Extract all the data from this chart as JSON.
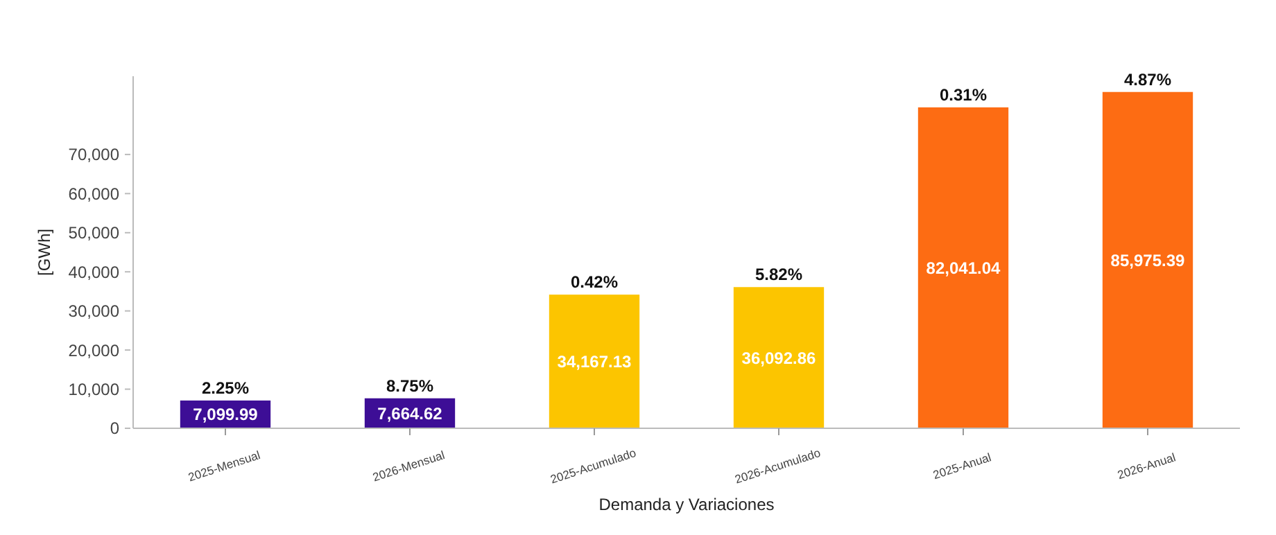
{
  "chart_data": {
    "type": "bar",
    "xlabel": "Demanda y Variaciones",
    "ylabel": "[GWh]",
    "categories": [
      "2025-Mensual",
      "2026-Mensual",
      "2025-Acumulado",
      "2026-Acumulado",
      "2025-Anual",
      "2026-Anual"
    ],
    "values": [
      7099.99,
      7664.62,
      34167.13,
      36092.86,
      82041.04,
      85975.39
    ],
    "colors": [
      "#3d0e96",
      "#3d0e96",
      "#fcc500",
      "#fcc500",
      "#fd6c13",
      "#fd6c13"
    ],
    "ylim": [
      0,
      90000
    ],
    "yticks": [
      {
        "value": 0,
        "label": "0"
      },
      {
        "value": 10000,
        "label": "10,000"
      },
      {
        "value": 20000,
        "label": "20,000"
      },
      {
        "value": 30000,
        "label": "30,000"
      },
      {
        "value": 40000,
        "label": "40,000"
      },
      {
        "value": 50000,
        "label": "50,000"
      },
      {
        "value": 60000,
        "label": "60,000"
      },
      {
        "value": 70000,
        "label": "70,000"
      }
    ],
    "value_labels": [
      "7,099.99",
      "7,664.62",
      "34,167.13",
      "36,092.86",
      "82,041.04",
      "85,975.39"
    ],
    "grid": false,
    "annotations": [
      {
        "text": "2.25%",
        "x": "2025-Mensual",
        "y": 7099.99
      },
      {
        "text": "8.75%",
        "x": "2026-Mensual",
        "y": 7664.62
      },
      {
        "text": "0.42%",
        "x": "2025-Acumulado",
        "y": 34167.13
      },
      {
        "text": "5.82%",
        "x": "2026-Acumulado",
        "y": 36092.86
      },
      {
        "text": "0.31%",
        "x": "2025-Anual",
        "y": 82041.04
      },
      {
        "text": "4.87%",
        "x": "2026-Anual",
        "y": 85975.39
      }
    ]
  }
}
